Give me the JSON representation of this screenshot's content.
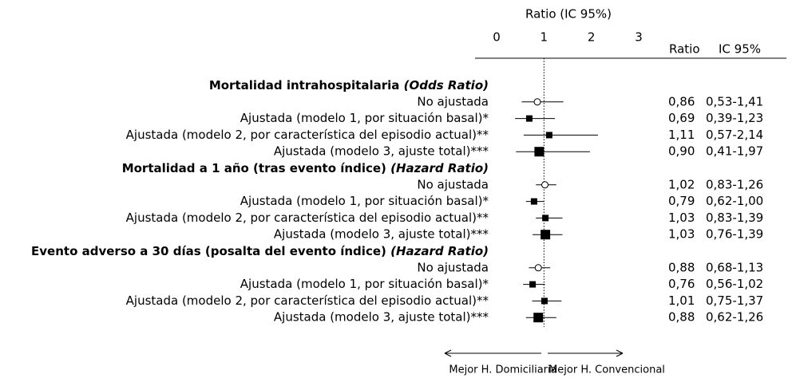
{
  "chart_data": {
    "type": "forest",
    "x_label": "Ratio (IC 95%)",
    "xlim": [
      0,
      3
    ],
    "xticks": [
      0,
      1,
      2,
      3
    ],
    "reference_line": 1,
    "column_headers": [
      "Ratio",
      "IC 95%"
    ],
    "arrow_labels": [
      "Mejor H. Domiciliaria",
      "Mejor H. Convencional"
    ],
    "markers": [
      "circle",
      "square",
      "square",
      "square"
    ],
    "color": "#000000",
    "sections": [
      {
        "title": "Mortalidad intrahospitalaria",
        "title_note": "(Odds Ratio)",
        "categories": [
          "No ajustada",
          "Ajustada (modelo 1, por situación basal)*",
          "Ajustada (modelo 2, por característica del episodio actual)**",
          "Ajustada (modelo 3, ajuste total)***"
        ],
        "values": [
          0.86,
          0.69,
          1.11,
          0.9
        ],
        "value_labels": [
          "0,86",
          "0,69",
          "1,11",
          "0,90"
        ],
        "lower": [
          0.53,
          0.39,
          0.57,
          0.41
        ],
        "upper": [
          1.41,
          1.23,
          2.14,
          1.97
        ],
        "ci_labels": [
          "0,53-1,41",
          "0,39-1,23",
          "0,57-2,14",
          "0,41-1,97"
        ]
      },
      {
        "title": "Mortalidad a 1 año (tras evento índice)",
        "title_note": "(Hazard Ratio)",
        "categories": [
          "No ajustada",
          "Ajustada (modelo 1, por situación basal)*",
          "Ajustada (modelo 2, por característica del episodio actual)**",
          "Ajustada (modelo 3, ajuste total)***"
        ],
        "values": [
          1.02,
          0.79,
          1.03,
          1.03
        ],
        "value_labels": [
          "1,02",
          "0,79",
          "1,03",
          "1,03"
        ],
        "lower": [
          0.83,
          0.62,
          0.83,
          0.76
        ],
        "upper": [
          1.26,
          1.0,
          1.39,
          1.39
        ],
        "ci_labels": [
          "0,83-1,26",
          "0,62-1,00",
          "0,83-1,39",
          "0,76-1,39"
        ]
      },
      {
        "title": "Evento adverso a 30 días (posalta del evento índice)",
        "title_note": "(Hazard Ratio)",
        "categories": [
          "No ajustada",
          "Ajustada (modelo 1, por situación basal)*",
          "Ajustada (modelo 2, por característica del episodio actual)**",
          "Ajustada (modelo 3, ajuste total)***"
        ],
        "values": [
          0.88,
          0.76,
          1.01,
          0.88
        ],
        "value_labels": [
          "0,88",
          "0,76",
          "1,01",
          "0,88"
        ],
        "lower": [
          0.68,
          0.56,
          0.75,
          0.62
        ],
        "upper": [
          1.13,
          1.02,
          1.37,
          1.26
        ],
        "ci_labels": [
          "0,68-1,13",
          "0,56-1,02",
          "0,75-1,37",
          "0,62-1,26"
        ]
      }
    ]
  }
}
